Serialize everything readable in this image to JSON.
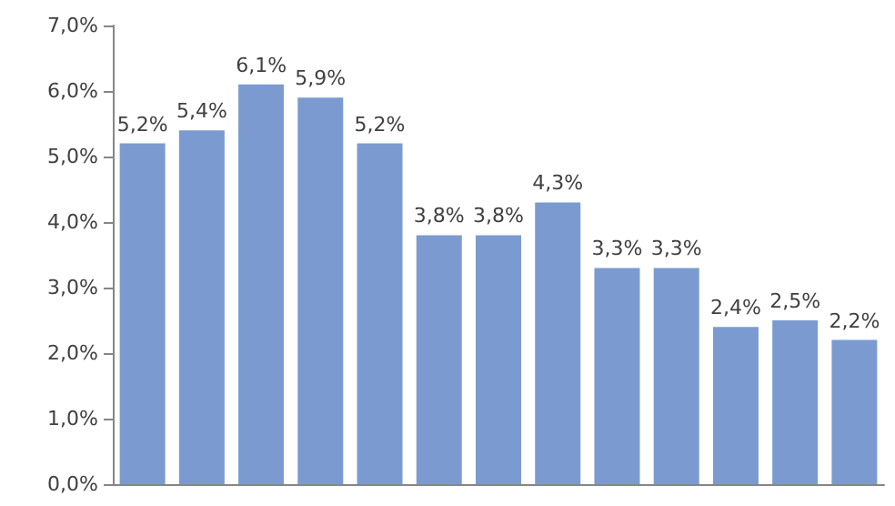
{
  "chart_data": {
    "type": "bar",
    "categories": [
      null,
      null,
      null,
      null,
      null,
      null,
      null,
      null,
      null,
      null,
      null,
      null,
      null
    ],
    "values": [
      5.2,
      5.4,
      6.1,
      5.9,
      5.2,
      3.8,
      3.8,
      4.3,
      3.3,
      3.3,
      2.4,
      2.5,
      2.2
    ],
    "value_labels": [
      "5,2%",
      "5,4%",
      "6,1%",
      "5,9%",
      "5,2%",
      "3,8%",
      "3,8%",
      "4,3%",
      "3,3%",
      "3,3%",
      "2,4%",
      "2,5%",
      "2,2%"
    ],
    "color": "#7b9bd0",
    "ylim": [
      0,
      7
    ],
    "yticks": [
      {
        "value": 0,
        "label": "0,0%"
      },
      {
        "value": 1,
        "label": "1,0%"
      },
      {
        "value": 2,
        "label": "2,0%"
      },
      {
        "value": 3,
        "label": "3,0%"
      },
      {
        "value": 4,
        "label": "4,0%"
      },
      {
        "value": 5,
        "label": "5,0%"
      },
      {
        "value": 6,
        "label": "6,0%"
      },
      {
        "value": 7,
        "label": "7,0%"
      }
    ],
    "grid": false
  }
}
